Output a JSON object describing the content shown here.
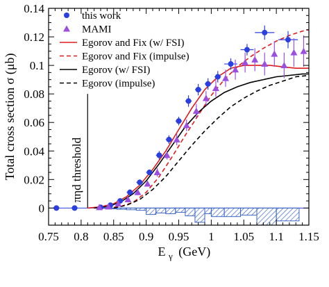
{
  "chart_data": {
    "type": "scatter",
    "xlabel": "E",
    "xlabel_sub": "γ",
    "xlabel_unit": "(GeV)",
    "ylabel": "Total cross section σ (μb)",
    "xlim": [
      0.75,
      1.15
    ],
    "ylim": [
      -0.012,
      0.14
    ],
    "x_ticks": [
      "0.75",
      "0.8",
      "0.85",
      "0.9",
      "0.95",
      "1",
      "1.05",
      "1.1",
      "1.15"
    ],
    "y_ticks": [
      "0",
      "0.02",
      "0.04",
      "0.06",
      "0.08",
      "0.1",
      "0.12",
      "0.14"
    ],
    "threshold": {
      "label": "πηd threshold",
      "x": 0.81,
      "y_top": 0.08
    },
    "series": [
      {
        "name": "this work",
        "kind": "points",
        "marker": "circle",
        "color": "#2a3fe0",
        "points": [
          {
            "x": 0.762,
            "y": 0.0,
            "err": 0.0005,
            "xerr": 0.005
          },
          {
            "x": 0.79,
            "y": 0.0,
            "err": 0.0005,
            "xerr": 0.005
          },
          {
            "x": 0.83,
            "y": 0.0005,
            "err": 0.0008,
            "xerr": 0.005
          },
          {
            "x": 0.845,
            "y": 0.002,
            "err": 0.001,
            "xerr": 0.005
          },
          {
            "x": 0.86,
            "y": 0.005,
            "err": 0.0015,
            "xerr": 0.005
          },
          {
            "x": 0.875,
            "y": 0.011,
            "err": 0.002,
            "xerr": 0.005
          },
          {
            "x": 0.89,
            "y": 0.018,
            "err": 0.002,
            "xerr": 0.005
          },
          {
            "x": 0.905,
            "y": 0.025,
            "err": 0.002,
            "xerr": 0.005
          },
          {
            "x": 0.92,
            "y": 0.037,
            "err": 0.003,
            "xerr": 0.005
          },
          {
            "x": 0.935,
            "y": 0.048,
            "err": 0.003,
            "xerr": 0.005
          },
          {
            "x": 0.95,
            "y": 0.061,
            "err": 0.003,
            "xerr": 0.005
          },
          {
            "x": 0.965,
            "y": 0.075,
            "err": 0.004,
            "xerr": 0.005
          },
          {
            "x": 0.98,
            "y": 0.083,
            "err": 0.004,
            "xerr": 0.005
          },
          {
            "x": 0.995,
            "y": 0.087,
            "err": 0.004,
            "xerr": 0.005
          },
          {
            "x": 1.01,
            "y": 0.092,
            "err": 0.004,
            "xerr": 0.005
          },
          {
            "x": 1.03,
            "y": 0.101,
            "err": 0.004,
            "xerr": 0.01
          },
          {
            "x": 1.055,
            "y": 0.111,
            "err": 0.004,
            "xerr": 0.01
          },
          {
            "x": 1.082,
            "y": 0.123,
            "err": 0.005,
            "xerr": 0.015
          },
          {
            "x": 1.118,
            "y": 0.118,
            "err": 0.006,
            "xerr": 0.015
          }
        ]
      },
      {
        "name": "MAMI",
        "kind": "points",
        "marker": "triangle",
        "color": "#9b4fe0",
        "points": [
          {
            "x": 0.828,
            "y": 0.0005,
            "err": 0.001
          },
          {
            "x": 0.842,
            "y": 0.001,
            "err": 0.001
          },
          {
            "x": 0.857,
            "y": 0.003,
            "err": 0.001
          },
          {
            "x": 0.872,
            "y": 0.006,
            "err": 0.002
          },
          {
            "x": 0.887,
            "y": 0.011,
            "err": 0.002
          },
          {
            "x": 0.902,
            "y": 0.017,
            "err": 0.002
          },
          {
            "x": 0.917,
            "y": 0.025,
            "err": 0.003
          },
          {
            "x": 0.932,
            "y": 0.037,
            "err": 0.003
          },
          {
            "x": 0.947,
            "y": 0.048,
            "err": 0.004
          },
          {
            "x": 0.962,
            "y": 0.058,
            "err": 0.004
          },
          {
            "x": 0.977,
            "y": 0.068,
            "err": 0.005
          },
          {
            "x": 0.992,
            "y": 0.077,
            "err": 0.005
          },
          {
            "x": 1.007,
            "y": 0.084,
            "err": 0.006
          },
          {
            "x": 1.022,
            "y": 0.091,
            "err": 0.006
          },
          {
            "x": 1.037,
            "y": 0.097,
            "err": 0.007
          },
          {
            "x": 1.052,
            "y": 0.102,
            "err": 0.007
          },
          {
            "x": 1.067,
            "y": 0.104,
            "err": 0.008
          },
          {
            "x": 1.082,
            "y": 0.101,
            "err": 0.008
          },
          {
            "x": 1.097,
            "y": 0.108,
            "err": 0.009
          },
          {
            "x": 1.112,
            "y": 0.1,
            "err": 0.009
          },
          {
            "x": 1.127,
            "y": 0.109,
            "err": 0.01
          },
          {
            "x": 1.142,
            "y": 0.11,
            "err": 0.011
          }
        ]
      },
      {
        "name": "Egorov and Fix (w/ FSI)",
        "kind": "line",
        "color": "#e01a1a",
        "dash": "",
        "points": [
          [
            0.81,
            0
          ],
          [
            0.83,
            0.0008
          ],
          [
            0.85,
            0.003
          ],
          [
            0.87,
            0.008
          ],
          [
            0.89,
            0.016
          ],
          [
            0.91,
            0.027
          ],
          [
            0.93,
            0.04
          ],
          [
            0.95,
            0.055
          ],
          [
            0.97,
            0.07
          ],
          [
            0.99,
            0.083
          ],
          [
            1.01,
            0.092
          ],
          [
            1.03,
            0.098
          ],
          [
            1.05,
            0.1
          ],
          [
            1.07,
            0.1
          ],
          [
            1.09,
            0.1
          ],
          [
            1.11,
            0.099
          ],
          [
            1.13,
            0.098
          ],
          [
            1.15,
            0.098
          ]
        ]
      },
      {
        "name": "Egorov and Fix (impulse)",
        "kind": "line",
        "color": "#e01a1a",
        "dash": "6,4",
        "points": [
          [
            0.84,
            0
          ],
          [
            0.86,
            0.001
          ],
          [
            0.88,
            0.004
          ],
          [
            0.9,
            0.011
          ],
          [
            0.92,
            0.022
          ],
          [
            0.94,
            0.036
          ],
          [
            0.96,
            0.051
          ],
          [
            0.98,
            0.065
          ],
          [
            1.0,
            0.079
          ],
          [
            1.02,
            0.09
          ],
          [
            1.04,
            0.099
          ],
          [
            1.06,
            0.106
          ],
          [
            1.08,
            0.112
          ],
          [
            1.1,
            0.117
          ],
          [
            1.12,
            0.121
          ],
          [
            1.14,
            0.124
          ],
          [
            1.15,
            0.125
          ]
        ]
      },
      {
        "name": "Egorov (w/ FSI)",
        "kind": "line",
        "color": "#000000",
        "dash": "",
        "points": [
          [
            0.82,
            0
          ],
          [
            0.84,
            0.001
          ],
          [
            0.86,
            0.004
          ],
          [
            0.88,
            0.01
          ],
          [
            0.9,
            0.019
          ],
          [
            0.92,
            0.031
          ],
          [
            0.94,
            0.044
          ],
          [
            0.96,
            0.057
          ],
          [
            0.98,
            0.067
          ],
          [
            1.0,
            0.075
          ],
          [
            1.02,
            0.081
          ],
          [
            1.04,
            0.085
          ],
          [
            1.06,
            0.088
          ],
          [
            1.08,
            0.09
          ],
          [
            1.1,
            0.092
          ],
          [
            1.12,
            0.093
          ],
          [
            1.14,
            0.094
          ],
          [
            1.15,
            0.094
          ]
        ]
      },
      {
        "name": "Egorov (impulse)",
        "kind": "line",
        "color": "#000000",
        "dash": "6,4",
        "points": [
          [
            0.85,
            0
          ],
          [
            0.87,
            0.002
          ],
          [
            0.89,
            0.006
          ],
          [
            0.91,
            0.013
          ],
          [
            0.93,
            0.022
          ],
          [
            0.95,
            0.033
          ],
          [
            0.97,
            0.044
          ],
          [
            0.99,
            0.054
          ],
          [
            1.01,
            0.063
          ],
          [
            1.03,
            0.071
          ],
          [
            1.05,
            0.077
          ],
          [
            1.07,
            0.082
          ],
          [
            1.09,
            0.086
          ],
          [
            1.11,
            0.089
          ],
          [
            1.13,
            0.092
          ],
          [
            1.15,
            0.093
          ]
        ]
      }
    ],
    "systematics": {
      "color": "#3a66c8",
      "bins": [
        {
          "x0": 0.83,
          "x1": 0.84,
          "y": -0.0003
        },
        {
          "x0": 0.84,
          "x1": 0.855,
          "y": -0.0006
        },
        {
          "x0": 0.855,
          "x1": 0.87,
          "y": -0.0009
        },
        {
          "x0": 0.87,
          "x1": 0.885,
          "y": -0.0012
        },
        {
          "x0": 0.885,
          "x1": 0.9,
          "y": -0.0016
        },
        {
          "x0": 0.9,
          "x1": 0.915,
          "y": -0.0045
        },
        {
          "x0": 0.915,
          "x1": 0.93,
          "y": -0.0035
        },
        {
          "x0": 0.93,
          "x1": 0.945,
          "y": -0.004
        },
        {
          "x0": 0.945,
          "x1": 0.96,
          "y": -0.003
        },
        {
          "x0": 0.96,
          "x1": 0.975,
          "y": -0.0055
        },
        {
          "x0": 0.975,
          "x1": 0.99,
          "y": -0.01
        },
        {
          "x0": 0.99,
          "x1": 1.0,
          "y": -0.004
        },
        {
          "x0": 1.0,
          "x1": 1.02,
          "y": -0.006
        },
        {
          "x0": 1.02,
          "x1": 1.045,
          "y": -0.006
        },
        {
          "x0": 1.045,
          "x1": 1.07,
          "y": -0.005
        },
        {
          "x0": 1.07,
          "x1": 1.1,
          "y": -0.012
        },
        {
          "x0": 1.1,
          "x1": 1.135,
          "y": -0.009
        }
      ]
    },
    "grid": false,
    "legend_position": "top-left"
  }
}
